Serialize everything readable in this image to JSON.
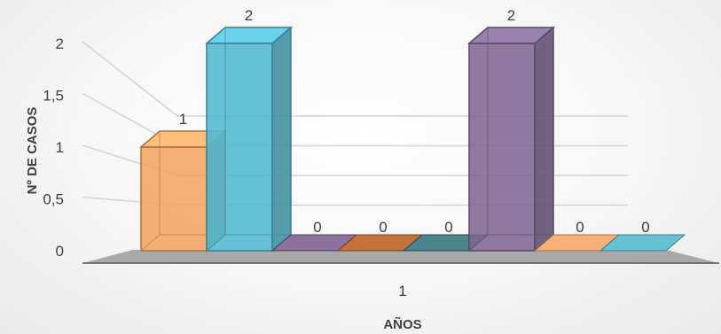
{
  "chart_data": {
    "type": "bar",
    "style": "3d-column",
    "categories": [
      "1"
    ],
    "series": [
      {
        "values": [
          1
        ],
        "color": "#F4A460"
      },
      {
        "values": [
          2
        ],
        "color": "#4FB8D0"
      },
      {
        "values": [
          0
        ],
        "color": "#7A5A8E"
      },
      {
        "values": [
          0
        ],
        "color": "#B85C1A"
      },
      {
        "values": [
          0
        ],
        "color": "#2E6F7A"
      },
      {
        "values": [
          2
        ],
        "color": "#7E6893"
      },
      {
        "values": [
          0
        ],
        "color": "#F4A460"
      },
      {
        "values": [
          0
        ],
        "color": "#4FB8D0"
      }
    ],
    "data_labels": [
      "1",
      "2",
      "0",
      "0",
      "0",
      "2",
      "0",
      "0"
    ],
    "xlabel": "AÑOS",
    "ylabel": "Nº DE CASOS",
    "ylim": [
      0,
      2
    ],
    "yticks": [
      0,
      0.5,
      1,
      1.5,
      2
    ],
    "ytick_labels": [
      "0",
      "0,5",
      "1",
      "1,5",
      "2"
    ],
    "grid": true,
    "legend": "none"
  }
}
